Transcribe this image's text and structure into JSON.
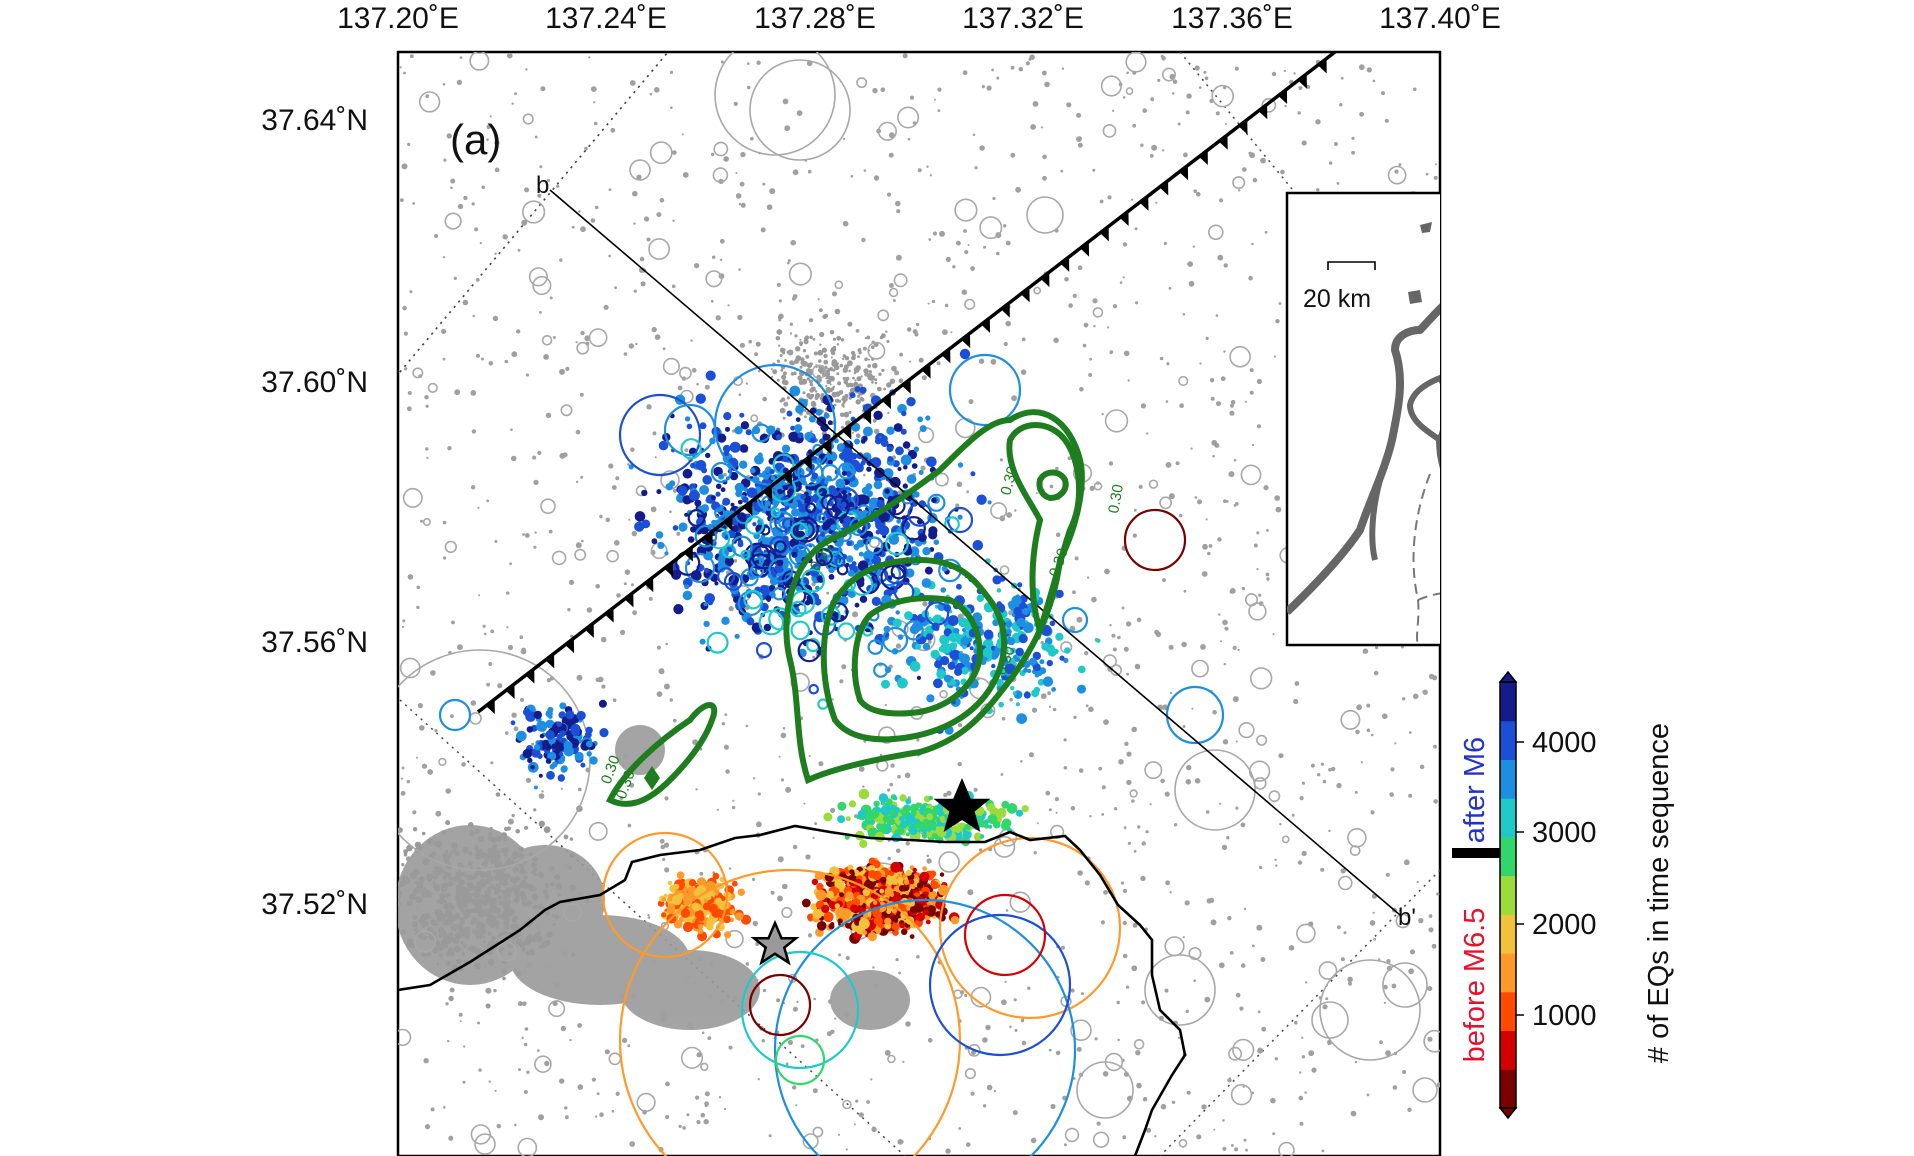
{
  "panel_label": "(a)",
  "axes": {
    "lon_ticks": [
      "137.20˚E",
      "137.24˚E",
      "137.28˚E",
      "137.32˚E",
      "137.36˚E",
      "137.40˚E"
    ],
    "lat_ticks": [
      "37.64˚N",
      "37.60˚N",
      "37.56˚N",
      "37.52˚N"
    ]
  },
  "profile": {
    "start": "b",
    "end": "b'"
  },
  "inset": {
    "scale_label": "20 km"
  },
  "colorbar": {
    "title": "# of EQs in time sequence",
    "ticks": [
      "4000",
      "3000",
      "2000",
      "1000"
    ],
    "label_before": "before M6.5",
    "label_after": "after M6",
    "colors": [
      "#7a0000",
      "#d40000",
      "#ff4a00",
      "#ff9a2a",
      "#f2c23c",
      "#9bdc3c",
      "#33d66a",
      "#1fc9c9",
      "#1e8fe0",
      "#1a4fd6",
      "#141c8c"
    ]
  },
  "contour_labels": [
    "0.30",
    "0.30",
    "0.30",
    "0.30",
    "0.30",
    "0.30",
    "0.30"
  ],
  "colors": {
    "background_seismicity": "#9a9a9a",
    "contour": "#1e7d1e",
    "coastline": "#000000",
    "fault": "#000000",
    "inset_land": "#666666"
  }
}
